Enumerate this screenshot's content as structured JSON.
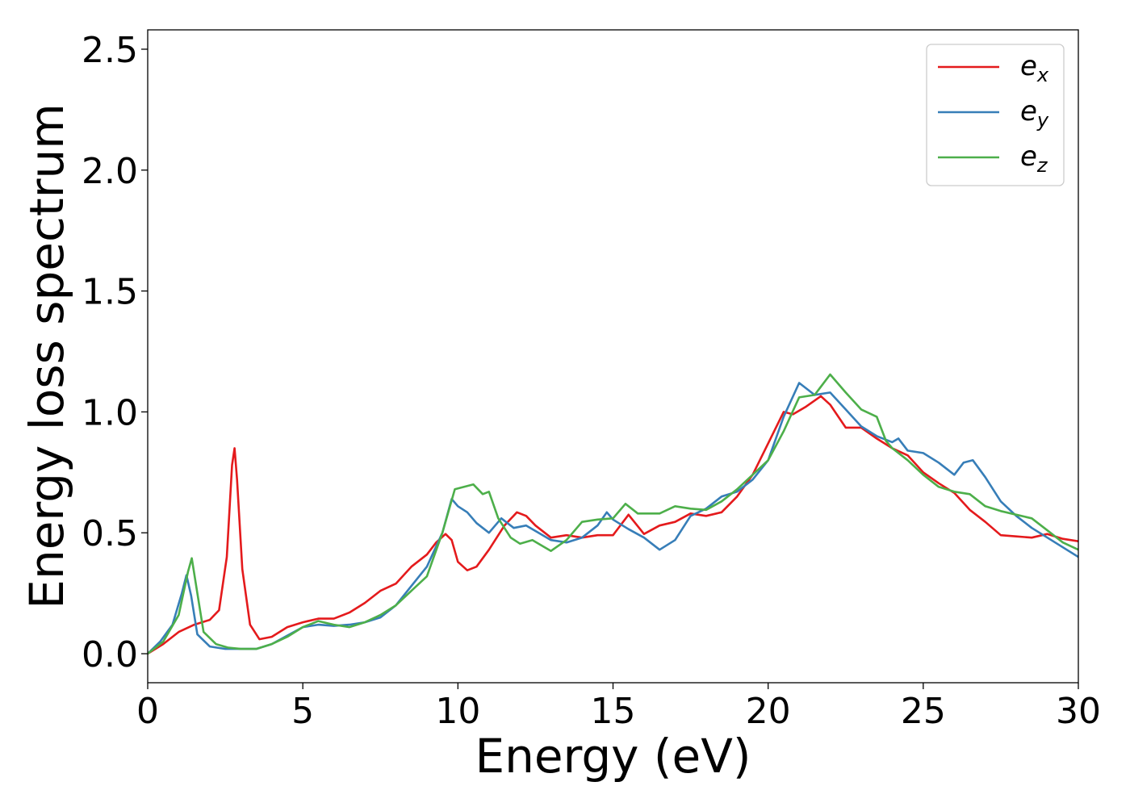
{
  "chart_data": {
    "type": "line",
    "xlabel": "Energy (eV)",
    "ylabel": "Energy loss spectrum",
    "xlim": [
      0,
      30
    ],
    "ylim": [
      -0.12,
      2.58
    ],
    "xticks": [
      0,
      5,
      10,
      15,
      20,
      25,
      30
    ],
    "xtick_labels": [
      "0",
      "5",
      "10",
      "15",
      "20",
      "25",
      "30"
    ],
    "yticks": [
      0.0,
      0.5,
      1.0,
      1.5,
      2.0,
      2.5
    ],
    "ytick_labels": [
      "0.0",
      "0.5",
      "1.0",
      "1.5",
      "2.0",
      "2.5"
    ],
    "grid": false,
    "legend_position": "top-right",
    "series": [
      {
        "name": "e_x",
        "label_base": "e",
        "label_sub": "x",
        "color": "#e41a1c",
        "points": [
          [
            0,
            0
          ],
          [
            0.5,
            0.04
          ],
          [
            1.0,
            0.09
          ],
          [
            1.5,
            0.12
          ],
          [
            2.0,
            0.14
          ],
          [
            2.3,
            0.18
          ],
          [
            2.55,
            0.4
          ],
          [
            2.72,
            0.78
          ],
          [
            2.8,
            0.85
          ],
          [
            2.88,
            0.72
          ],
          [
            3.05,
            0.35
          ],
          [
            3.3,
            0.12
          ],
          [
            3.6,
            0.06
          ],
          [
            4.0,
            0.07
          ],
          [
            4.5,
            0.11
          ],
          [
            5.0,
            0.13
          ],
          [
            5.5,
            0.145
          ],
          [
            6.0,
            0.145
          ],
          [
            6.5,
            0.17
          ],
          [
            7.0,
            0.21
          ],
          [
            7.5,
            0.26
          ],
          [
            8.0,
            0.29
          ],
          [
            8.5,
            0.36
          ],
          [
            9.0,
            0.41
          ],
          [
            9.3,
            0.46
          ],
          [
            9.6,
            0.495
          ],
          [
            9.8,
            0.47
          ],
          [
            10.0,
            0.38
          ],
          [
            10.3,
            0.345
          ],
          [
            10.6,
            0.36
          ],
          [
            11.0,
            0.43
          ],
          [
            11.5,
            0.53
          ],
          [
            11.9,
            0.585
          ],
          [
            12.2,
            0.57
          ],
          [
            12.5,
            0.53
          ],
          [
            13.0,
            0.48
          ],
          [
            13.5,
            0.49
          ],
          [
            14.0,
            0.48
          ],
          [
            14.5,
            0.49
          ],
          [
            15.0,
            0.49
          ],
          [
            15.5,
            0.575
          ],
          [
            16.0,
            0.495
          ],
          [
            16.5,
            0.53
          ],
          [
            17.0,
            0.545
          ],
          [
            17.5,
            0.58
          ],
          [
            18.0,
            0.57
          ],
          [
            18.5,
            0.585
          ],
          [
            19.0,
            0.65
          ],
          [
            19.5,
            0.74
          ],
          [
            20.0,
            0.87
          ],
          [
            20.5,
            1.0
          ],
          [
            20.8,
            0.99
          ],
          [
            21.2,
            1.02
          ],
          [
            21.7,
            1.065
          ],
          [
            22.0,
            1.03
          ],
          [
            22.5,
            0.935
          ],
          [
            23.0,
            0.935
          ],
          [
            23.5,
            0.89
          ],
          [
            24.0,
            0.85
          ],
          [
            24.5,
            0.82
          ],
          [
            25.0,
            0.75
          ],
          [
            25.5,
            0.705
          ],
          [
            26.0,
            0.665
          ],
          [
            26.5,
            0.595
          ],
          [
            27.0,
            0.545
          ],
          [
            27.5,
            0.49
          ],
          [
            28.0,
            0.485
          ],
          [
            28.5,
            0.48
          ],
          [
            29.0,
            0.495
          ],
          [
            29.5,
            0.475
          ],
          [
            30.0,
            0.465
          ]
        ]
      },
      {
        "name": "e_y",
        "label_base": "e",
        "label_sub": "y",
        "color": "#377eb8",
        "points": [
          [
            0,
            0
          ],
          [
            0.4,
            0.05
          ],
          [
            0.8,
            0.12
          ],
          [
            1.1,
            0.25
          ],
          [
            1.25,
            0.325
          ],
          [
            1.4,
            0.24
          ],
          [
            1.6,
            0.08
          ],
          [
            2.0,
            0.03
          ],
          [
            2.5,
            0.02
          ],
          [
            3.0,
            0.02
          ],
          [
            3.5,
            0.02
          ],
          [
            4.0,
            0.04
          ],
          [
            4.5,
            0.075
          ],
          [
            5.0,
            0.11
          ],
          [
            5.5,
            0.12
          ],
          [
            6.0,
            0.115
          ],
          [
            6.5,
            0.12
          ],
          [
            7.0,
            0.13
          ],
          [
            7.5,
            0.15
          ],
          [
            8.0,
            0.2
          ],
          [
            8.5,
            0.28
          ],
          [
            9.0,
            0.36
          ],
          [
            9.5,
            0.5
          ],
          [
            9.8,
            0.64
          ],
          [
            10.0,
            0.61
          ],
          [
            10.3,
            0.585
          ],
          [
            10.6,
            0.54
          ],
          [
            11.0,
            0.5
          ],
          [
            11.4,
            0.56
          ],
          [
            11.8,
            0.52
          ],
          [
            12.2,
            0.53
          ],
          [
            12.6,
            0.5
          ],
          [
            13.0,
            0.47
          ],
          [
            13.5,
            0.46
          ],
          [
            14.0,
            0.48
          ],
          [
            14.5,
            0.53
          ],
          [
            14.8,
            0.585
          ],
          [
            15.0,
            0.555
          ],
          [
            15.5,
            0.515
          ],
          [
            16.0,
            0.48
          ],
          [
            16.5,
            0.43
          ],
          [
            17.0,
            0.47
          ],
          [
            17.5,
            0.57
          ],
          [
            18.0,
            0.6
          ],
          [
            18.5,
            0.65
          ],
          [
            19.0,
            0.67
          ],
          [
            19.5,
            0.72
          ],
          [
            20.0,
            0.8
          ],
          [
            20.5,
            0.98
          ],
          [
            21.0,
            1.12
          ],
          [
            21.5,
            1.07
          ],
          [
            22.0,
            1.08
          ],
          [
            22.5,
            1.01
          ],
          [
            23.0,
            0.94
          ],
          [
            23.5,
            0.9
          ],
          [
            24.0,
            0.875
          ],
          [
            24.2,
            0.89
          ],
          [
            24.5,
            0.84
          ],
          [
            25.0,
            0.83
          ],
          [
            25.5,
            0.79
          ],
          [
            26.0,
            0.74
          ],
          [
            26.3,
            0.79
          ],
          [
            26.6,
            0.8
          ],
          [
            27.0,
            0.73
          ],
          [
            27.5,
            0.63
          ],
          [
            28.0,
            0.57
          ],
          [
            28.5,
            0.52
          ],
          [
            29.0,
            0.48
          ],
          [
            29.5,
            0.44
          ],
          [
            30.0,
            0.4
          ]
        ]
      },
      {
        "name": "e_z",
        "label_base": "e",
        "label_sub": "z",
        "color": "#4daf4a",
        "points": [
          [
            0,
            0
          ],
          [
            0.5,
            0.05
          ],
          [
            1.0,
            0.16
          ],
          [
            1.3,
            0.34
          ],
          [
            1.42,
            0.395
          ],
          [
            1.6,
            0.25
          ],
          [
            1.8,
            0.09
          ],
          [
            2.2,
            0.04
          ],
          [
            2.6,
            0.025
          ],
          [
            3.0,
            0.02
          ],
          [
            3.5,
            0.02
          ],
          [
            4.0,
            0.04
          ],
          [
            4.5,
            0.07
          ],
          [
            5.0,
            0.11
          ],
          [
            5.5,
            0.135
          ],
          [
            6.0,
            0.12
          ],
          [
            6.5,
            0.11
          ],
          [
            7.0,
            0.13
          ],
          [
            7.5,
            0.16
          ],
          [
            8.0,
            0.2
          ],
          [
            8.5,
            0.26
          ],
          [
            9.0,
            0.32
          ],
          [
            9.5,
            0.5
          ],
          [
            9.9,
            0.68
          ],
          [
            10.2,
            0.69
          ],
          [
            10.5,
            0.7
          ],
          [
            10.8,
            0.66
          ],
          [
            11.0,
            0.67
          ],
          [
            11.3,
            0.56
          ],
          [
            11.7,
            0.48
          ],
          [
            12.0,
            0.455
          ],
          [
            12.4,
            0.47
          ],
          [
            12.8,
            0.44
          ],
          [
            13.0,
            0.425
          ],
          [
            13.5,
            0.47
          ],
          [
            14.0,
            0.545
          ],
          [
            14.5,
            0.555
          ],
          [
            15.0,
            0.56
          ],
          [
            15.4,
            0.62
          ],
          [
            15.8,
            0.58
          ],
          [
            16.5,
            0.58
          ],
          [
            17.0,
            0.61
          ],
          [
            17.5,
            0.6
          ],
          [
            18.0,
            0.595
          ],
          [
            18.5,
            0.63
          ],
          [
            19.0,
            0.68
          ],
          [
            19.5,
            0.74
          ],
          [
            20.0,
            0.8
          ],
          [
            20.5,
            0.92
          ],
          [
            21.0,
            1.06
          ],
          [
            21.5,
            1.07
          ],
          [
            22.0,
            1.155
          ],
          [
            22.5,
            1.08
          ],
          [
            23.0,
            1.01
          ],
          [
            23.5,
            0.98
          ],
          [
            23.8,
            0.88
          ],
          [
            24.0,
            0.85
          ],
          [
            24.5,
            0.8
          ],
          [
            25.0,
            0.74
          ],
          [
            25.5,
            0.69
          ],
          [
            26.0,
            0.67
          ],
          [
            26.5,
            0.66
          ],
          [
            27.0,
            0.61
          ],
          [
            27.5,
            0.59
          ],
          [
            28.0,
            0.575
          ],
          [
            28.5,
            0.56
          ],
          [
            29.0,
            0.51
          ],
          [
            29.5,
            0.46
          ],
          [
            30.0,
            0.43
          ]
        ]
      }
    ]
  }
}
